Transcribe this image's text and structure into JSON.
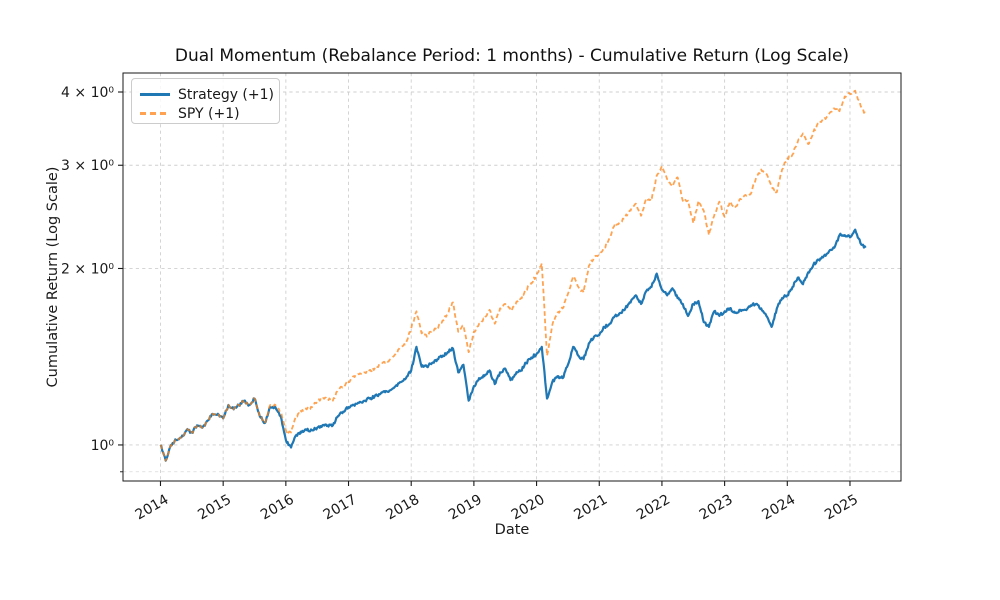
{
  "title": "Dual Momentum (Rebalance Period: 1 months) - Cumulative Return (Log Scale)",
  "axes": {
    "xlabel": "Date",
    "ylabel": "Cumulative Return (Log Scale)",
    "xlim": [
      2013.402,
      2025.814
    ],
    "ylim": [
      0.868,
      4.31
    ],
    "yscale": "log",
    "grid": true,
    "x_ticks": [
      {
        "value": 2014,
        "label": "2014"
      },
      {
        "value": 2015,
        "label": "2015"
      },
      {
        "value": 2016,
        "label": "2016"
      },
      {
        "value": 2017,
        "label": "2017"
      },
      {
        "value": 2018,
        "label": "2018"
      },
      {
        "value": 2019,
        "label": "2019"
      },
      {
        "value": 2020,
        "label": "2020"
      },
      {
        "value": 2021,
        "label": "2021"
      },
      {
        "value": 2022,
        "label": "2022"
      },
      {
        "value": 2023,
        "label": "2023"
      },
      {
        "value": 2024,
        "label": "2024"
      },
      {
        "value": 2025,
        "label": "2025"
      }
    ],
    "y_ticks": [
      {
        "value": 1,
        "label": "10⁰"
      },
      {
        "value": 2,
        "label": "2 × 10⁰"
      },
      {
        "value": 3,
        "label": "3 × 10⁰"
      },
      {
        "value": 4,
        "label": "4 × 10⁰"
      }
    ],
    "y_minor_ticks": [
      0.9
    ]
  },
  "legend": {
    "position": "upper left",
    "items": [
      {
        "label": "Strategy (+1)",
        "color": "#1f77b4",
        "dash": false,
        "opacity": 1
      },
      {
        "label": "SPY (+1)",
        "color": "#ff7f0e",
        "dash": true,
        "opacity": 0.72
      }
    ]
  },
  "chart_data": {
    "type": "line",
    "x_unit": "decimal_year",
    "x_start": 2014.0,
    "x_step": 0.0833333,
    "note_values_are_monthly_cumulative_return_multiples": true,
    "series": [
      {
        "name": "Strategy (+1)",
        "color": "#1f77b4",
        "style": "solid",
        "linewidth": 2.2,
        "opacity": 1,
        "values": [
          1.0,
          0.94,
          1.0,
          1.02,
          1.03,
          1.06,
          1.05,
          1.08,
          1.07,
          1.1,
          1.13,
          1.13,
          1.11,
          1.17,
          1.15,
          1.17,
          1.19,
          1.17,
          1.2,
          1.12,
          1.09,
          1.16,
          1.16,
          1.12,
          1.02,
          0.99,
          1.04,
          1.05,
          1.06,
          1.06,
          1.07,
          1.08,
          1.08,
          1.08,
          1.12,
          1.14,
          1.16,
          1.17,
          1.18,
          1.19,
          1.2,
          1.21,
          1.22,
          1.23,
          1.24,
          1.26,
          1.28,
          1.3,
          1.34,
          1.47,
          1.36,
          1.36,
          1.38,
          1.4,
          1.42,
          1.44,
          1.46,
          1.33,
          1.37,
          1.19,
          1.26,
          1.3,
          1.31,
          1.34,
          1.27,
          1.33,
          1.35,
          1.29,
          1.32,
          1.34,
          1.38,
          1.41,
          1.43,
          1.47,
          1.2,
          1.28,
          1.31,
          1.3,
          1.37,
          1.47,
          1.42,
          1.4,
          1.49,
          1.53,
          1.54,
          1.59,
          1.61,
          1.66,
          1.68,
          1.71,
          1.75,
          1.8,
          1.74,
          1.83,
          1.86,
          1.96,
          1.84,
          1.8,
          1.85,
          1.78,
          1.74,
          1.66,
          1.74,
          1.76,
          1.62,
          1.59,
          1.69,
          1.66,
          1.69,
          1.71,
          1.68,
          1.7,
          1.7,
          1.73,
          1.74,
          1.71,
          1.66,
          1.59,
          1.71,
          1.78,
          1.8,
          1.86,
          1.93,
          1.88,
          1.97,
          2.03,
          2.07,
          2.1,
          2.14,
          2.17,
          2.28,
          2.28,
          2.26,
          2.33,
          2.21,
          2.17
        ]
      },
      {
        "name": "SPY (+1)",
        "color": "#ff7f0e",
        "style": "dashed",
        "linewidth": 1.8,
        "opacity": 0.72,
        "values": [
          1.0,
          0.94,
          1.0,
          1.02,
          1.03,
          1.06,
          1.05,
          1.08,
          1.07,
          1.1,
          1.13,
          1.13,
          1.11,
          1.17,
          1.15,
          1.17,
          1.19,
          1.17,
          1.2,
          1.12,
          1.09,
          1.17,
          1.17,
          1.14,
          1.06,
          1.05,
          1.12,
          1.14,
          1.15,
          1.16,
          1.19,
          1.2,
          1.2,
          1.19,
          1.24,
          1.26,
          1.28,
          1.31,
          1.32,
          1.33,
          1.34,
          1.35,
          1.37,
          1.38,
          1.4,
          1.43,
          1.47,
          1.49,
          1.58,
          1.69,
          1.55,
          1.53,
          1.57,
          1.58,
          1.63,
          1.68,
          1.75,
          1.56,
          1.6,
          1.44,
          1.56,
          1.61,
          1.64,
          1.7,
          1.61,
          1.71,
          1.74,
          1.7,
          1.74,
          1.78,
          1.84,
          1.89,
          1.95,
          2.04,
          1.42,
          1.6,
          1.68,
          1.71,
          1.81,
          1.94,
          1.86,
          1.82,
          2.02,
          2.09,
          2.11,
          2.17,
          2.26,
          2.38,
          2.4,
          2.45,
          2.51,
          2.58,
          2.46,
          2.63,
          2.61,
          2.88,
          2.99,
          2.84,
          2.76,
          2.86,
          2.61,
          2.61,
          2.39,
          2.61,
          2.51,
          2.28,
          2.46,
          2.6,
          2.45,
          2.6,
          2.54,
          2.63,
          2.67,
          2.68,
          2.85,
          2.95,
          2.9,
          2.76,
          2.7,
          2.95,
          3.08,
          3.13,
          3.29,
          3.4,
          3.26,
          3.42,
          3.54,
          3.59,
          3.67,
          3.75,
          3.71,
          3.93,
          3.97,
          4.02,
          3.8,
          3.66
        ]
      }
    ],
    "title": "Dual Momentum (Rebalance Period: 1 months) - Cumulative Return (Log Scale)",
    "xlabel": "Date",
    "ylabel": "Cumulative Return (Log Scale)"
  },
  "style": {
    "grid_color": "#cfcfcf",
    "minor_grid_color": "#d9d9d9",
    "spine_color": "#1a1a1a",
    "tick_color": "#1a1a1a",
    "background": "#ffffff"
  }
}
